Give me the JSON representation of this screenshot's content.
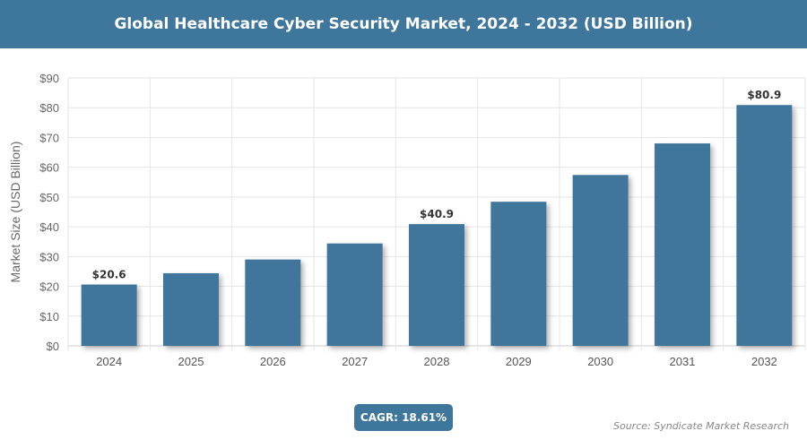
{
  "chart_data": {
    "type": "bar",
    "title": "Global Healthcare Cyber Security Market, 2024 - 2032 (USD Billion)",
    "xlabel": "",
    "ylabel": "Market Size (USD Billion)",
    "ylim": [
      0,
      90
    ],
    "yticks": [
      "$0",
      "$10",
      "$20",
      "$30",
      "$40",
      "$50",
      "$60",
      "$70",
      "$80",
      "$90"
    ],
    "categories": [
      "2024",
      "2025",
      "2026",
      "2027",
      "2028",
      "2029",
      "2030",
      "2031",
      "2032"
    ],
    "values": [
      20.6,
      24.4,
      29.0,
      34.4,
      40.9,
      48.4,
      57.4,
      68.0,
      80.9
    ],
    "data_labels": {
      "0": "$20.6",
      "4": "$40.9",
      "8": "$80.9"
    },
    "grid": true,
    "bar_color": "#3f769c"
  },
  "cagr": "CAGR: 18.61%",
  "source": "Source: Syndicate Market Research"
}
